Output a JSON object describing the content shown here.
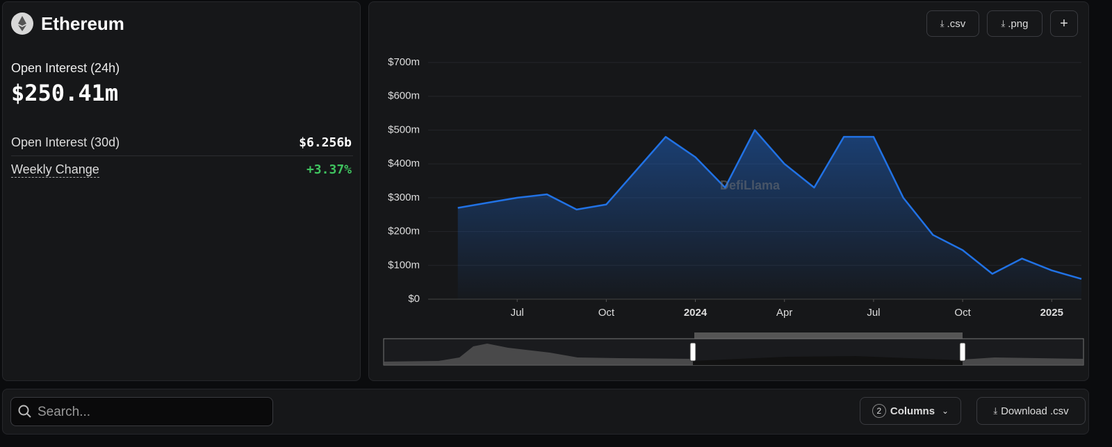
{
  "header": {
    "title": "Ethereum"
  },
  "stats": {
    "oi_24h_label": "Open Interest (24h)",
    "oi_24h_value": "$250.41m",
    "oi_30d_label": "Open Interest (30d)",
    "oi_30d_value": "$6.256b",
    "weekly_label": "Weekly Change",
    "weekly_value": "+3.37%"
  },
  "toolbar": {
    "csv": ".csv",
    "png": ".png",
    "add": "+"
  },
  "chart_data": {
    "type": "line",
    "watermark": "DefiLlama",
    "x": [
      "2023-05",
      "2023-06",
      "2023-07",
      "2023-08",
      "2023-09",
      "2023-10",
      "2023-11",
      "2023-12",
      "2024-01",
      "2024-02",
      "2024-03",
      "2024-04",
      "2024-05",
      "2024-06",
      "2024-07",
      "2024-08",
      "2024-09",
      "2024-10",
      "2024-11",
      "2024-12",
      "2025-01",
      "2025-02"
    ],
    "series": [
      {
        "name": "Open Interest",
        "color": "#2172e5",
        "values": [
          270,
          285,
          300,
          310,
          265,
          280,
          380,
          480,
          420,
          330,
          500,
          400,
          330,
          480,
          480,
          300,
          190,
          145,
          75,
          120,
          85,
          60
        ]
      }
    ],
    "xlim": [
      "2023-04",
      "2025-02"
    ],
    "xticks": [
      {
        "value": "2023-07",
        "label": "Jul"
      },
      {
        "value": "2023-10",
        "label": "Oct"
      },
      {
        "value": "2024-01",
        "label": "2024"
      },
      {
        "value": "2024-04",
        "label": "Apr"
      },
      {
        "value": "2024-07",
        "label": "Jul"
      },
      {
        "value": "2024-10",
        "label": "Oct"
      },
      {
        "value": "2025-01",
        "label": "2025"
      }
    ],
    "ylim": [
      0,
      700
    ],
    "yticks": [
      {
        "value": 0,
        "label": "$0"
      },
      {
        "value": 100,
        "label": "$100m"
      },
      {
        "value": 200,
        "label": "$200m"
      },
      {
        "value": 300,
        "label": "$300m"
      },
      {
        "value": 400,
        "label": "$400m"
      },
      {
        "value": 500,
        "label": "$500m"
      },
      {
        "value": 600,
        "label": "$600m"
      },
      {
        "value": 700,
        "label": "$700m"
      }
    ],
    "grid": true
  },
  "table_bar": {
    "search_placeholder": "Search...",
    "columns_count": "2",
    "columns_label": "Columns",
    "download": "Download .csv"
  }
}
